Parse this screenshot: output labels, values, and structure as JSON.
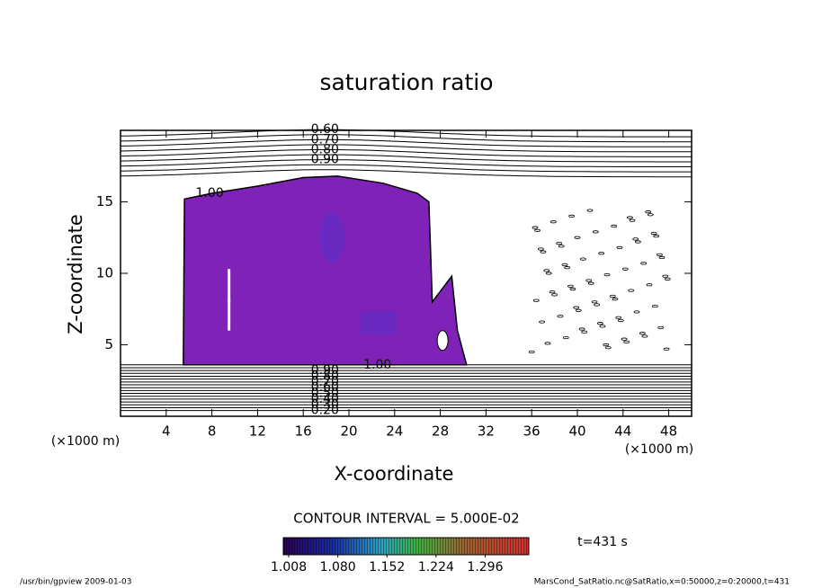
{
  "chart_data": {
    "type": "contour",
    "title": "saturation ratio",
    "xlabel": "X-coordinate",
    "ylabel": "Z-coordinate",
    "x_unit": "(×1000 m)",
    "y_unit": "(×1000 m)",
    "xlim": [
      0,
      50
    ],
    "ylim": [
      0,
      20
    ],
    "xticks": [
      4,
      8,
      12,
      16,
      20,
      24,
      28,
      32,
      36,
      40,
      44,
      48
    ],
    "yticks": [
      5,
      10,
      15
    ],
    "fill_color": "#7f22b8",
    "upper_levels": [
      {
        "value": 0.6,
        "label": "0.60"
      },
      0.65,
      {
        "value": 0.7,
        "label": "0.70"
      },
      0.75,
      {
        "value": 0.8,
        "label": "0.80"
      },
      0.85,
      {
        "value": 0.9,
        "label": "0.90"
      },
      0.95,
      {
        "value": 1.0,
        "label": "1.00"
      }
    ],
    "lower_levels": [
      {
        "value": 0.2,
        "label": "0.20"
      },
      0.25,
      {
        "value": 0.3,
        "label": "0.30"
      },
      0.35,
      {
        "value": 0.4,
        "label": "0.40"
      },
      0.45,
      {
        "value": 0.5,
        "label": "0.50"
      },
      0.55,
      {
        "value": 0.6,
        "label": "0.60"
      },
      0.65,
      {
        "value": 0.7,
        "label": "0.70"
      },
      0.75,
      {
        "value": 0.8,
        "label": "0.80"
      },
      0.85,
      {
        "value": 0.9,
        "label": "0.90"
      },
      0.95,
      {
        "value": 1.0,
        "label": "1.00"
      }
    ],
    "contour_interval": "CONTOUR INTERVAL = 5.000E-02",
    "clim": [
      1.0,
      1.36
    ],
    "colorbar_ticks": [
      {
        "value": 1.008,
        "label": "1.008"
      },
      {
        "value": 1.08,
        "label": "1.080"
      },
      {
        "value": 1.152,
        "label": "1.152"
      },
      {
        "value": 1.224,
        "label": "1.224"
      },
      {
        "value": 1.296,
        "label": "1.296"
      }
    ],
    "time_label": "t=431 s",
    "footer_left": "/usr/bin/gpview  2009-01-03",
    "footer_right": "MarsCond_SatRatio.nc@SatRatio,x=0:50000,z=0:20000,t=431"
  }
}
